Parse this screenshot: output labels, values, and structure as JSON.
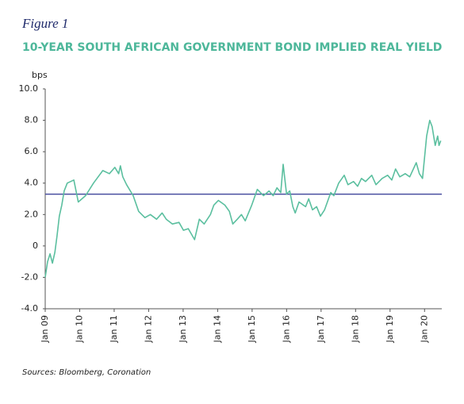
{
  "chart_data": {
    "type": "line",
    "figure_label": "Figure 1",
    "title": "10-YEAR SOUTH AFRICAN GOVERNMENT BOND IMPLIED REAL YIELD",
    "y_label": "bps",
    "source": "Sources: Bloomberg, Coronation",
    "series": [
      {
        "color": "#5bbf9f",
        "x": [
          2009.0,
          2009.07,
          2009.14,
          2009.21,
          2009.28,
          2009.34,
          2009.41,
          2009.48,
          2009.55,
          2009.64,
          2009.83,
          2009.96,
          2010.17,
          2010.4,
          2010.67,
          2010.86,
          2011.02,
          2011.13,
          2011.18,
          2011.25,
          2011.36,
          2011.55,
          2011.71,
          2011.89,
          2012.05,
          2012.23,
          2012.39,
          2012.51,
          2012.69,
          2012.88,
          2013.01,
          2013.15,
          2013.33,
          2013.47,
          2013.61,
          2013.79,
          2013.89,
          2014.02,
          2014.21,
          2014.34,
          2014.44,
          2014.57,
          2014.69,
          2014.8,
          2014.99,
          2015.15,
          2015.33,
          2015.49,
          2015.61,
          2015.72,
          2015.83,
          2015.9,
          2016.0,
          2016.09,
          2016.18,
          2016.25,
          2016.36,
          2016.55,
          2016.64,
          2016.75,
          2016.87,
          2016.98,
          2017.1,
          2017.28,
          2017.37,
          2017.51,
          2017.67,
          2017.78,
          2017.94,
          2018.06,
          2018.17,
          2018.29,
          2018.47,
          2018.59,
          2018.77,
          2018.93,
          2019.05,
          2019.16,
          2019.28,
          2019.44,
          2019.57,
          2019.76,
          2019.85,
          2019.94,
          2020.06,
          2020.15,
          2020.22,
          2020.31,
          2020.38,
          2020.42,
          2020.47
        ],
        "values": [
          -2.0,
          -1.0,
          -0.5,
          -1.1,
          -0.4,
          0.6,
          1.9,
          2.6,
          3.5,
          4.0,
          4.2,
          2.8,
          3.2,
          4.0,
          4.8,
          4.6,
          5.0,
          4.6,
          5.1,
          4.4,
          3.9,
          3.2,
          2.2,
          1.8,
          2.0,
          1.7,
          2.1,
          1.7,
          1.4,
          1.5,
          1.0,
          1.1,
          0.4,
          1.7,
          1.4,
          2.0,
          2.6,
          2.9,
          2.6,
          2.2,
          1.4,
          1.7,
          2.0,
          1.6,
          2.6,
          3.6,
          3.2,
          3.5,
          3.2,
          3.7,
          3.4,
          5.2,
          3.3,
          3.5,
          2.5,
          2.1,
          2.8,
          2.5,
          3.0,
          2.3,
          2.5,
          1.9,
          2.3,
          3.4,
          3.2,
          4.0,
          4.5,
          3.9,
          4.1,
          3.8,
          4.3,
          4.1,
          4.5,
          3.9,
          4.3,
          4.5,
          4.2,
          4.9,
          4.4,
          4.6,
          4.4,
          5.3,
          4.6,
          4.3,
          7.0,
          8.0,
          7.6,
          6.4,
          7.0,
          6.4,
          6.7
        ]
      }
    ],
    "reference_line": {
      "value": 3.3,
      "color": "#4a4fa0"
    },
    "xlim": [
      2009,
      2020.5
    ],
    "xticks": [
      {
        "value": 2009,
        "label": "Jan 09"
      },
      {
        "value": 2010,
        "label": "Jan 10"
      },
      {
        "value": 2011,
        "label": "Jan 11"
      },
      {
        "value": 2012,
        "label": "Jan 12"
      },
      {
        "value": 2013,
        "label": "Jan 13"
      },
      {
        "value": 2014,
        "label": "Jan 14"
      },
      {
        "value": 2015,
        "label": "Jan 15"
      },
      {
        "value": 2016,
        "label": "Jan 16"
      },
      {
        "value": 2017,
        "label": "Jan 17"
      },
      {
        "value": 2018,
        "label": "Jan 18"
      },
      {
        "value": 2019,
        "label": "Jan 19"
      },
      {
        "value": 2020,
        "label": "Jan 20"
      }
    ],
    "ylim": [
      -4,
      10
    ],
    "yticks": [
      {
        "value": 10,
        "label": "10.0"
      },
      {
        "value": 8,
        "label": "8.0"
      },
      {
        "value": 6,
        "label": "6.0"
      },
      {
        "value": 4,
        "label": "4.0"
      },
      {
        "value": 2,
        "label": "2.0"
      },
      0,
      {
        "value": -2,
        "label": "-2.0"
      },
      {
        "value": -4,
        "label": "-4.0"
      }
    ]
  }
}
